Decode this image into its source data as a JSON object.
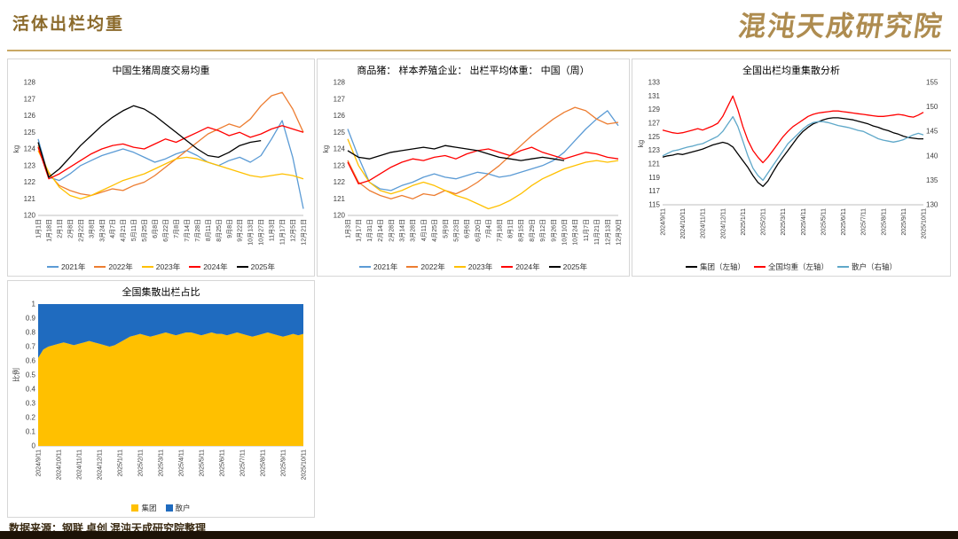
{
  "page": {
    "title": "活体出栏均重",
    "brand": "混沌天成研究院",
    "footer": "数据来源：钢联 卓创 混沌天成研究院整理"
  },
  "colors": {
    "accent_gold": "#C9A865",
    "title_brown": "#8B6A2B",
    "bottom_bar": "#1C1206",
    "y2021": "#5B9BD5",
    "y2022": "#ED7D31",
    "y2023": "#FFC000",
    "y2024": "#FF0000",
    "y2025": "#000000",
    "scatter_blue": "#5FA8C9",
    "stack_yellow": "#FFC000",
    "stack_blue": "#1F6BBF"
  },
  "chart_data": [
    {
      "type": "line",
      "title": "中国生猪周度交易均重",
      "ylabel": "kg",
      "ylim": [
        120,
        128
      ],
      "yticks": [
        120,
        121,
        122,
        123,
        124,
        125,
        126,
        127,
        128
      ],
      "categories": [
        "1月1日",
        "1月18日",
        "2月1日",
        "2月8日",
        "2月22日",
        "3月8日",
        "3月24日",
        "4月7日",
        "4月21日",
        "5月11日",
        "5月25日",
        "6月8日",
        "6月22日",
        "7月8日",
        "7月14日",
        "7月28日",
        "8月11日",
        "8月25日",
        "9月8日",
        "9月22日",
        "10月13日",
        "10月27日",
        "11月3日",
        "11月17日",
        "12月5日",
        "12月21日"
      ],
      "series": [
        {
          "name": "2021年",
          "color": "#5B9BD5",
          "values": [
            124.6,
            122.3,
            122.1,
            122.5,
            123.0,
            123.3,
            123.6,
            123.8,
            124.0,
            123.8,
            123.5,
            123.2,
            123.4,
            123.7,
            123.9,
            123.6,
            123.2,
            123.0,
            123.3,
            123.5,
            123.2,
            123.6,
            124.6,
            125.7,
            123.5,
            120.4
          ]
        },
        {
          "name": "2022年",
          "color": "#ED7D31",
          "values": [
            124.2,
            122.5,
            121.8,
            121.5,
            121.3,
            121.2,
            121.4,
            121.6,
            121.5,
            121.8,
            122.0,
            122.4,
            122.9,
            123.4,
            123.9,
            124.4,
            124.9,
            125.2,
            125.5,
            125.3,
            125.8,
            126.6,
            127.2,
            127.4,
            126.4,
            125.0
          ]
        },
        {
          "name": "2023年",
          "color": "#FFC000",
          "values": [
            123.9,
            122.6,
            121.7,
            121.2,
            121.0,
            121.2,
            121.5,
            121.8,
            122.1,
            122.3,
            122.5,
            122.8,
            123.1,
            123.4,
            123.5,
            123.4,
            123.2,
            123.0,
            122.8,
            122.6,
            122.4,
            122.3,
            122.4,
            122.5,
            122.4,
            122.2
          ]
        },
        {
          "name": "2024年",
          "color": "#FF0000",
          "values": [
            124.1,
            122.2,
            122.5,
            122.9,
            123.3,
            123.7,
            124.0,
            124.2,
            124.3,
            124.1,
            124.0,
            124.3,
            124.6,
            124.4,
            124.7,
            125.0,
            125.3,
            125.1,
            124.8,
            125.0,
            124.7,
            124.9,
            125.2,
            125.4,
            125.2,
            125.0
          ]
        },
        {
          "name": "2025年",
          "color": "#000000",
          "values": [
            124.4,
            122.3,
            122.8,
            123.5,
            124.2,
            124.8,
            125.4,
            125.9,
            126.3,
            126.6,
            126.4,
            126.0,
            125.5,
            125.0,
            124.5,
            124.0,
            123.6,
            123.5,
            123.8,
            124.2,
            124.4,
            124.5,
            null,
            null,
            null,
            null
          ]
        }
      ]
    },
    {
      "type": "line",
      "title": "商品猪： 样本养殖企业： 出栏平均体重： 中国（周）",
      "ylabel": "kg",
      "ylim": [
        120,
        128
      ],
      "yticks": [
        120,
        121,
        122,
        123,
        124,
        125,
        126,
        127,
        128
      ],
      "categories": [
        "1月3日",
        "1月17日",
        "1月31日",
        "2月14日",
        "2月28日",
        "3月14日",
        "3月28日",
        "4月11日",
        "4月25日",
        "5月9日",
        "5月23日",
        "6月6日",
        "6月20日",
        "7月4日",
        "7月18日",
        "8月1日",
        "8月15日",
        "8月29日",
        "9月12日",
        "9月26日",
        "10月10日",
        "10月24日",
        "11月7日",
        "11月21日",
        "12月13日",
        "12月30日"
      ],
      "series": [
        {
          "name": "2021年",
          "color": "#5B9BD5",
          "values": [
            125.2,
            123.5,
            122.0,
            121.6,
            121.5,
            121.8,
            122.0,
            122.3,
            122.5,
            122.3,
            122.2,
            122.4,
            122.6,
            122.5,
            122.3,
            122.4,
            122.6,
            122.8,
            123.0,
            123.3,
            123.8,
            124.5,
            125.2,
            125.8,
            126.3,
            125.4
          ]
        },
        {
          "name": "2022年",
          "color": "#ED7D31",
          "values": [
            123.3,
            122.0,
            121.5,
            121.2,
            121.0,
            121.2,
            121.0,
            121.3,
            121.2,
            121.5,
            121.3,
            121.6,
            122.0,
            122.5,
            123.0,
            123.6,
            124.2,
            124.8,
            125.3,
            125.8,
            126.2,
            126.5,
            126.3,
            125.8,
            125.5,
            125.6
          ]
        },
        {
          "name": "2023年",
          "color": "#FFC000",
          "values": [
            124.6,
            123.0,
            122.0,
            121.5,
            121.3,
            121.5,
            121.8,
            122.0,
            121.8,
            121.5,
            121.2,
            121.0,
            120.7,
            120.4,
            120.6,
            120.9,
            121.3,
            121.8,
            122.2,
            122.5,
            122.8,
            123.0,
            123.2,
            123.3,
            123.2,
            123.3
          ]
        },
        {
          "name": "2024年",
          "color": "#FF0000",
          "values": [
            123.2,
            121.9,
            122.1,
            122.5,
            122.9,
            123.2,
            123.4,
            123.3,
            123.5,
            123.6,
            123.4,
            123.7,
            123.9,
            124.0,
            123.8,
            123.6,
            123.9,
            124.1,
            123.8,
            123.6,
            123.4,
            123.6,
            123.8,
            123.7,
            123.5,
            123.4
          ]
        },
        {
          "name": "2025年",
          "color": "#000000",
          "values": [
            123.9,
            123.5,
            123.4,
            123.6,
            123.8,
            123.9,
            124.0,
            124.1,
            124.0,
            124.2,
            124.1,
            124.0,
            123.9,
            123.7,
            123.5,
            123.4,
            123.3,
            123.4,
            123.5,
            123.4,
            123.3,
            null,
            null,
            null,
            null,
            null
          ]
        }
      ]
    },
    {
      "type": "line",
      "title": "全国出栏均重集散分析",
      "ylabel": "kg",
      "ylim": [
        115,
        133
      ],
      "yticks": [
        115,
        117,
        119,
        121,
        123,
        125,
        127,
        129,
        131,
        133
      ],
      "ylim_right": [
        130,
        155
      ],
      "yticks_right": [
        130,
        135,
        140,
        145,
        150,
        155
      ],
      "categories": [
        "2024/9/11",
        "2024/10/11",
        "2024/11/11",
        "2024/12/11",
        "2025/1/11",
        "2025/2/11",
        "2025/3/11",
        "2025/4/11",
        "2025/5/11",
        "2025/6/11",
        "2025/7/11",
        "2025/8/11",
        "2025/9/11",
        "2025/10/11"
      ],
      "series": [
        {
          "name": "集团（左轴）",
          "color": "#000000",
          "axis": "left",
          "values": [
            122.0,
            122.2,
            122.3,
            122.5,
            122.4,
            122.6,
            122.8,
            123.0,
            123.2,
            123.5,
            123.8,
            124.0,
            124.2,
            124.0,
            123.5,
            122.5,
            121.5,
            120.5,
            119.3,
            118.3,
            117.7,
            118.5,
            119.8,
            121.0,
            122.0,
            123.0,
            124.0,
            125.0,
            125.8,
            126.4,
            126.9,
            127.2,
            127.5,
            127.7,
            127.8,
            127.8,
            127.7,
            127.6,
            127.5,
            127.3,
            127.1,
            126.9,
            126.6,
            126.4,
            126.1,
            125.9,
            125.6,
            125.4,
            125.1,
            124.9,
            124.8,
            124.7,
            124.7
          ]
        },
        {
          "name": "全国均重（左轴）",
          "color": "#FF0000",
          "axis": "left",
          "values": [
            126.0,
            125.8,
            125.6,
            125.5,
            125.6,
            125.8,
            126.0,
            126.2,
            126.0,
            126.3,
            126.6,
            127.0,
            128.0,
            129.5,
            131.0,
            129.0,
            126.5,
            124.5,
            123.0,
            122.0,
            121.2,
            122.0,
            123.0,
            124.0,
            125.0,
            125.8,
            126.5,
            127.0,
            127.5,
            128.0,
            128.3,
            128.5,
            128.6,
            128.7,
            128.8,
            128.8,
            128.7,
            128.6,
            128.5,
            128.4,
            128.3,
            128.2,
            128.1,
            128.0,
            128.0,
            128.1,
            128.2,
            128.3,
            128.2,
            128.0,
            127.9,
            128.2,
            128.6
          ]
        },
        {
          "name": "散户（右轴）",
          "color": "#5FA8C9",
          "axis": "right",
          "values": [
            140.0,
            140.5,
            141.0,
            141.2,
            141.5,
            141.8,
            142.0,
            142.3,
            142.5,
            143.0,
            143.5,
            144.0,
            145.0,
            146.5,
            148.0,
            146.0,
            143.0,
            140.0,
            137.5,
            136.0,
            135.0,
            136.5,
            138.0,
            139.5,
            141.0,
            142.5,
            143.5,
            144.5,
            145.5,
            146.3,
            146.8,
            147.0,
            147.0,
            146.8,
            146.5,
            146.2,
            146.0,
            145.8,
            145.5,
            145.2,
            145.0,
            144.5,
            144.0,
            143.5,
            143.2,
            143.0,
            142.8,
            143.0,
            143.3,
            143.8,
            144.3,
            144.6,
            144.3
          ]
        }
      ]
    },
    {
      "type": "stacked_area",
      "title": "全国集散出栏占比",
      "ylabel": "比例",
      "ylim": [
        0,
        1
      ],
      "yticks": [
        "0",
        "0.1",
        "0.2",
        "0.3",
        "0.4",
        "0.5",
        "0.6",
        "0.7",
        "0.8",
        "0.9",
        "1"
      ],
      "categories": [
        "2024/9/11",
        "2024/10/11",
        "2024/11/11",
        "2024/12/11",
        "2025/1/11",
        "2025/2/11",
        "2025/3/11",
        "2025/4/11",
        "2025/5/11",
        "2025/6/11",
        "2025/7/11",
        "2025/8/11",
        "2025/9/11",
        "2025/10/11"
      ],
      "series": [
        {
          "name": "集团",
          "color": "#FFC000",
          "values": [
            0.62,
            0.68,
            0.7,
            0.71,
            0.72,
            0.73,
            0.72,
            0.71,
            0.72,
            0.73,
            0.74,
            0.73,
            0.72,
            0.71,
            0.7,
            0.71,
            0.73,
            0.75,
            0.77,
            0.78,
            0.79,
            0.78,
            0.77,
            0.78,
            0.79,
            0.8,
            0.79,
            0.78,
            0.79,
            0.8,
            0.8,
            0.79,
            0.78,
            0.79,
            0.8,
            0.79,
            0.79,
            0.78,
            0.79,
            0.8,
            0.79,
            0.78,
            0.77,
            0.78,
            0.79,
            0.8,
            0.79,
            0.78,
            0.77,
            0.78,
            0.79,
            0.78,
            0.79
          ]
        },
        {
          "name": "散户",
          "color": "#1F6BBF",
          "values": [
            0.38,
            0.32,
            0.3,
            0.29,
            0.28,
            0.27,
            0.28,
            0.29,
            0.28,
            0.27,
            0.26,
            0.27,
            0.28,
            0.29,
            0.3,
            0.29,
            0.27,
            0.25,
            0.23,
            0.22,
            0.21,
            0.22,
            0.23,
            0.22,
            0.21,
            0.2,
            0.21,
            0.22,
            0.21,
            0.2,
            0.2,
            0.21,
            0.22,
            0.21,
            0.2,
            0.21,
            0.21,
            0.22,
            0.21,
            0.2,
            0.21,
            0.22,
            0.23,
            0.22,
            0.21,
            0.2,
            0.21,
            0.22,
            0.23,
            0.22,
            0.21,
            0.22,
            0.21
          ]
        }
      ]
    }
  ]
}
